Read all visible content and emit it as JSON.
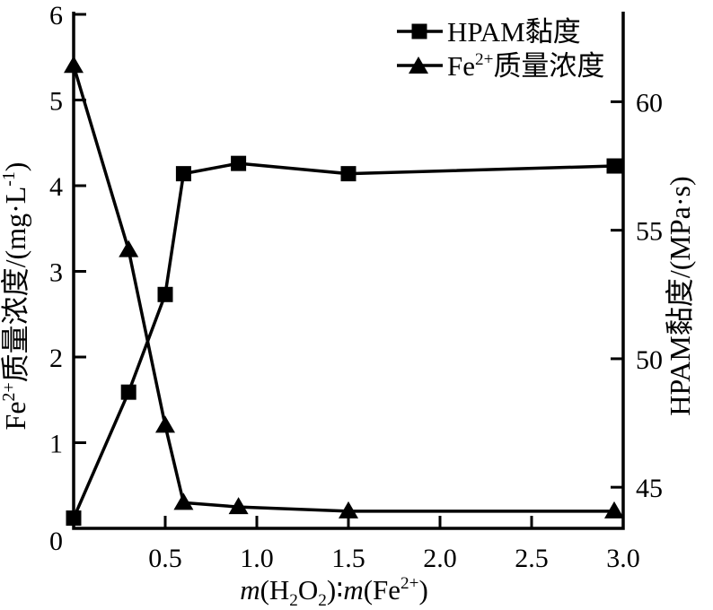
{
  "figure": {
    "background": "#ffffff",
    "ink": "#000000"
  },
  "chart_data": {
    "type": "line",
    "x": [
      0,
      0.3,
      0.5,
      0.6,
      0.9,
      1.5,
      3.0
    ],
    "series": [
      {
        "name": "HPAM黏度",
        "axis": "right",
        "marker": "square",
        "color": "#000000",
        "values": [
          43.8,
          48.7,
          52.5,
          57.2,
          57.6,
          57.2,
          57.5
        ],
        "label_parts": [
          {
            "t": "HPAM黏度"
          }
        ]
      },
      {
        "name": "Fe2+质量浓度",
        "axis": "left",
        "marker": "triangle",
        "color": "#000000",
        "values": [
          5.4,
          3.25,
          1.2,
          0.3,
          0.25,
          0.2,
          0.2
        ],
        "label_parts": [
          {
            "t": "Fe"
          },
          {
            "t": "2+",
            "sup": true
          },
          {
            "t": "质量浓度"
          }
        ]
      }
    ],
    "axes": {
      "x": {
        "label_text": "m(H2O2):m(Fe2+)",
        "label_parts": [
          {
            "t": "m",
            "italic": true
          },
          {
            "t": "(H"
          },
          {
            "t": "2",
            "sub": true
          },
          {
            "t": "O"
          },
          {
            "t": "2",
            "sub": true
          },
          {
            "t": ")∶"
          },
          {
            "t": "m",
            "italic": true
          },
          {
            "t": "(Fe"
          },
          {
            "t": "2+",
            "sup": true
          },
          {
            "t": ")"
          }
        ],
        "range": [
          0,
          3.0
        ],
        "ticks": [
          0,
          0.5,
          1.0,
          1.5,
          2.0,
          2.5,
          3.0
        ],
        "tick_labels": [
          "",
          "0.5",
          "1.0",
          "1.5",
          "2.0",
          "2.5",
          "3.0"
        ]
      },
      "left": {
        "label_text": "Fe2+质量浓度/(mg·L-1)",
        "label_parts": [
          {
            "t": "Fe"
          },
          {
            "t": "2+",
            "sup": true
          },
          {
            "t": "质量浓度/(mg·L"
          },
          {
            "t": "-1",
            "sup": true
          },
          {
            "t": ")"
          }
        ],
        "range": [
          0,
          6
        ],
        "ticks": [
          0,
          1,
          2,
          3,
          4,
          5,
          6
        ],
        "tick_labels": [
          "0",
          "1",
          "2",
          "3",
          "4",
          "5",
          "6"
        ]
      },
      "right": {
        "label_text": "HPAM黏度/(MPa·s)",
        "label_parts": [
          {
            "t": "HPAM黏度/(MPa·s)"
          }
        ],
        "range": [
          43.4,
          63.4
        ],
        "ticks": [
          45,
          50,
          55,
          60
        ],
        "tick_labels": [
          "45",
          "50",
          "55",
          "60"
        ]
      }
    },
    "legend": {
      "position": "upper-right",
      "border": "none"
    },
    "grid": false,
    "title": ""
  }
}
